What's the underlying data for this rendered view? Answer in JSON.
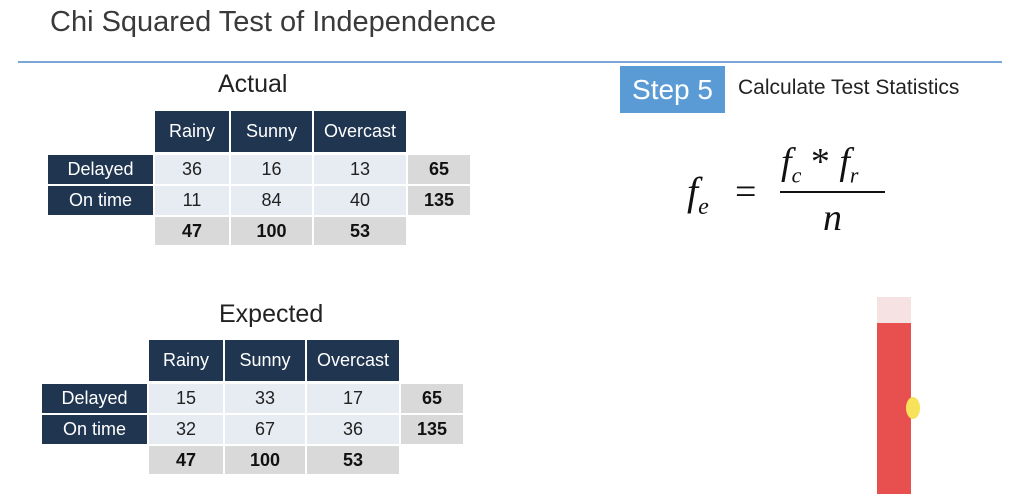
{
  "slide": {
    "title": "Chi Squared Test of Independence"
  },
  "step": {
    "badge": "Step 5",
    "description": "Calculate Test Statistics"
  },
  "formula": {
    "lhs": "f",
    "lhs_sub": "e",
    "equals": "=",
    "num_f1": "f",
    "num_f1_sub": "c",
    "num_op": " * ",
    "num_f2": "f",
    "num_f2_sub": "r",
    "denominator": "n"
  },
  "actual": {
    "title": "Actual",
    "columns": [
      "Rainy",
      "Sunny",
      "Overcast"
    ],
    "rows": [
      {
        "label": "Delayed",
        "values": [
          "36",
          "16",
          "13"
        ],
        "total": "65"
      },
      {
        "label": "On time",
        "values": [
          "11",
          "84",
          "40"
        ],
        "total": "135"
      }
    ],
    "column_totals": [
      "47",
      "100",
      "53"
    ]
  },
  "expected": {
    "title": "Expected",
    "columns": [
      "Rainy",
      "Sunny",
      "Overcast"
    ],
    "rows": [
      {
        "label": "Delayed",
        "values": [
          "15",
          "33",
          "17"
        ],
        "total": "65"
      },
      {
        "label": "On time",
        "values": [
          "32",
          "67",
          "36"
        ],
        "total": "135"
      }
    ],
    "column_totals": [
      "47",
      "100",
      "53"
    ]
  },
  "colors": {
    "header_bg": "#1f3550",
    "data_bg": "#e7ecf3",
    "total_bg": "#d9d9d9",
    "badge_bg": "#5b9bd5",
    "rule": "#7aa7d6",
    "red_bar": "#e84f4f"
  }
}
